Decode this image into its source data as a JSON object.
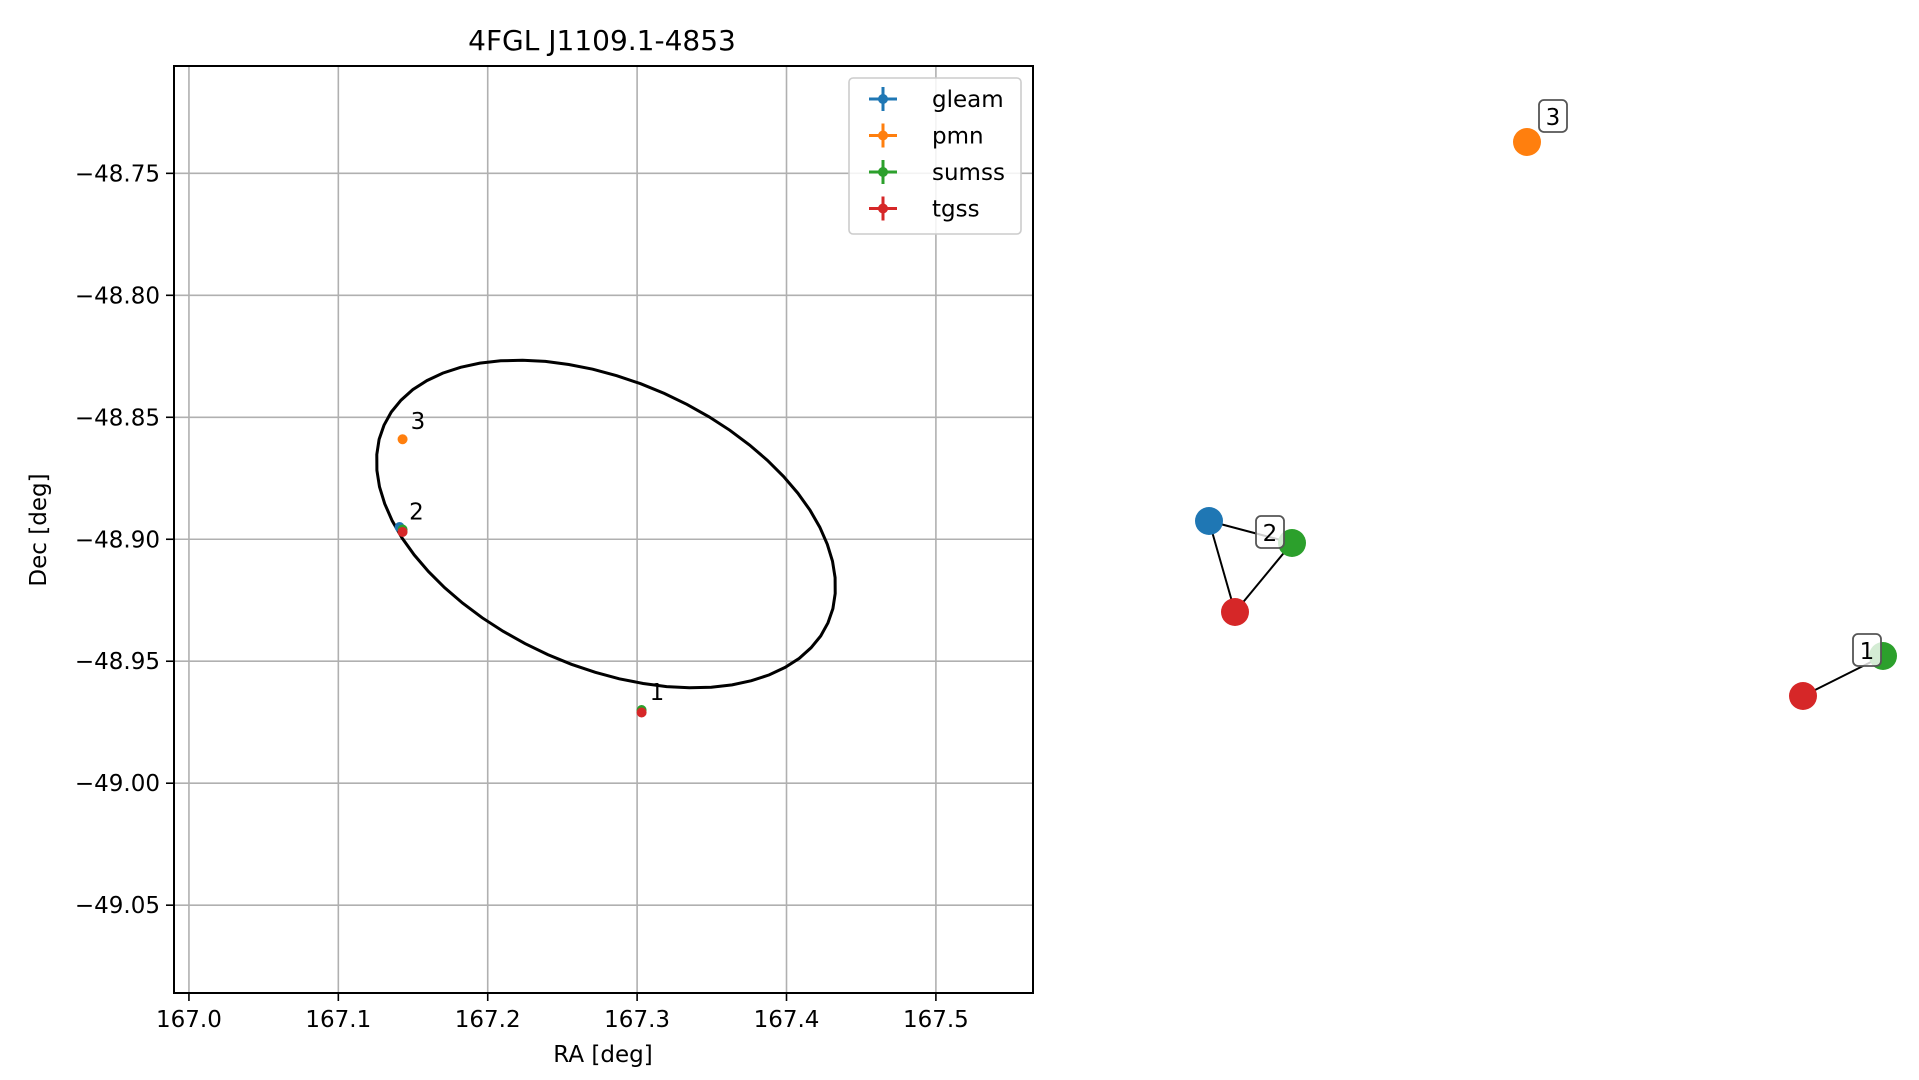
{
  "chart_data": [
    {
      "type": "scatter",
      "title": "4FGL J1109.1-4853",
      "xlabel": "RA [deg]",
      "ylabel": "Dec [deg]",
      "xlim": [
        166.99,
        167.565
      ],
      "ylim": [
        -49.086,
        -48.706
      ],
      "xticks": [
        "167.0",
        "167.1",
        "167.2",
        "167.3",
        "167.4",
        "167.5"
      ],
      "yticks": [
        "−48.75",
        "−48.80",
        "−48.85",
        "−48.90",
        "−48.95",
        "−49.00",
        "−49.05"
      ],
      "xtick_values": [
        167.0,
        167.1,
        167.2,
        167.3,
        167.4,
        167.5
      ],
      "ytick_values": [
        -48.75,
        -48.8,
        -48.85,
        -48.9,
        -48.95,
        -49.0,
        -49.05
      ],
      "grid": true,
      "legend_position": "top-right",
      "series": [
        {
          "name": "gleam",
          "color": "#1f77b4",
          "points": [
            {
              "x": 167.141,
              "y": -48.895
            }
          ]
        },
        {
          "name": "pmn",
          "color": "#ff7f0e",
          "points": [
            {
              "x": 167.143,
              "y": -48.859
            }
          ]
        },
        {
          "name": "sumss",
          "color": "#2ca02c",
          "points": [
            {
              "x": 167.143,
              "y": -48.896
            },
            {
              "x": 167.303,
              "y": -48.97
            }
          ]
        },
        {
          "name": "tgss",
          "color": "#d62728",
          "points": [
            {
              "x": 167.143,
              "y": -48.897
            },
            {
              "x": 167.303,
              "y": -48.971
            }
          ]
        }
      ],
      "point_labels": [
        {
          "text": "3",
          "x": 167.143,
          "y": -48.859
        },
        {
          "text": "2",
          "x": 167.142,
          "y": -48.896
        },
        {
          "text": "1",
          "x": 167.303,
          "y": -48.97
        }
      ],
      "ellipse": {
        "center_ra": 167.28,
        "center_dec": -48.896,
        "semi_major_deg": 0.2,
        "semi_minor_deg": 0.07,
        "note_free": true
      }
    },
    {
      "type": "graph",
      "nodes": [
        {
          "id": "gleam-2",
          "color": "#1f77b4"
        },
        {
          "id": "sumss-2",
          "color": "#2ca02c"
        },
        {
          "id": "tgss-2",
          "color": "#d62728"
        },
        {
          "id": "pmn-3",
          "color": "#ff7f0e"
        },
        {
          "id": "sumss-1",
          "color": "#2ca02c"
        },
        {
          "id": "tgss-1",
          "color": "#d62728"
        }
      ],
      "edges": [
        [
          "gleam-2",
          "sumss-2"
        ],
        [
          "gleam-2",
          "tgss-2"
        ],
        [
          "sumss-2",
          "tgss-2"
        ],
        [
          "sumss-1",
          "tgss-1"
        ]
      ],
      "group_labels": [
        "3",
        "2",
        "1"
      ]
    }
  ]
}
